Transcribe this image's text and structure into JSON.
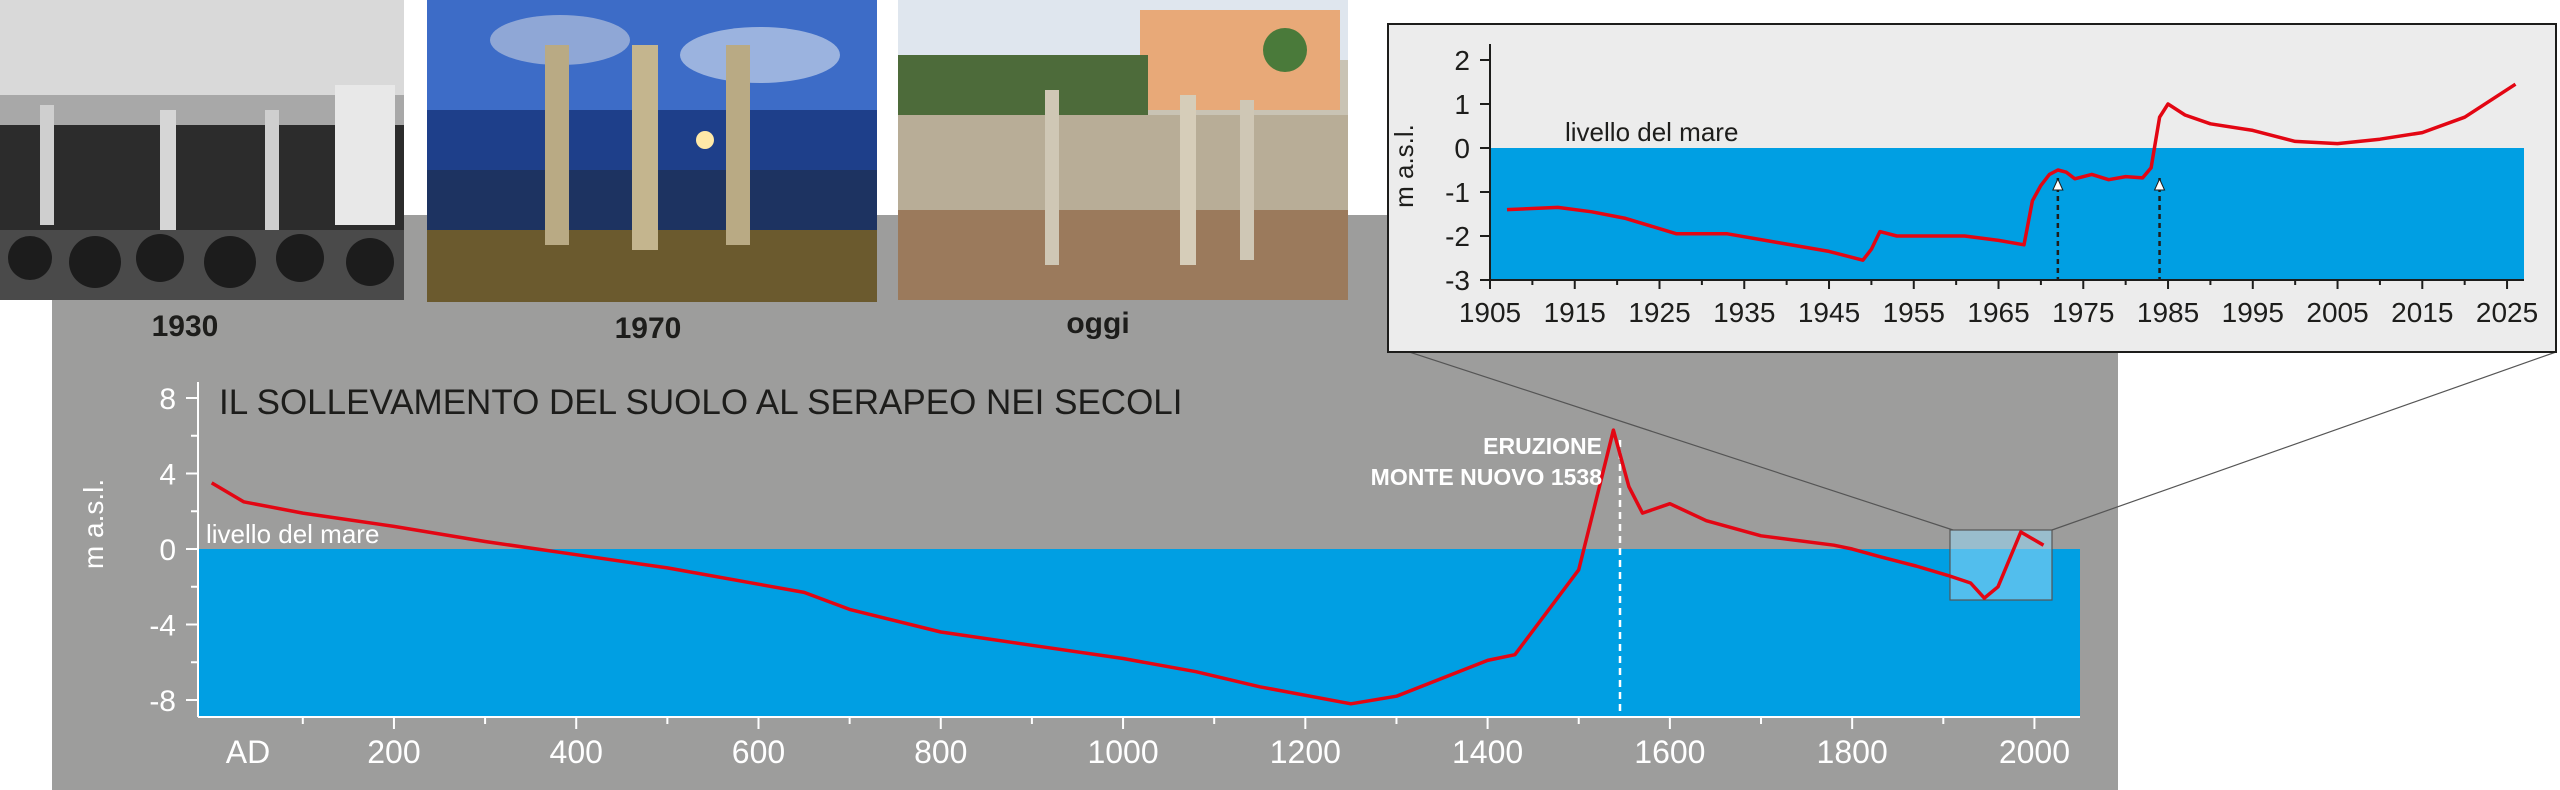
{
  "photos": [
    {
      "caption": "1930",
      "icon": "photo-1930-flooded-ruins"
    },
    {
      "caption": "1970",
      "icon": "photo-1970-night-columns"
    },
    {
      "caption": "oggi",
      "icon": "photo-today-ruins"
    }
  ],
  "colors": {
    "panel_gray": "#9d9d9c",
    "sea_blue": "#009fe3",
    "line_red": "#e30613",
    "inset_bg": "#ececec",
    "highlight_blue": "#66c2ee"
  },
  "main_chart": {
    "title": "IL SOLLEVAMENTO DEL SUOLO AL SERAPEO NEI SECOLI",
    "sea_level_label": "livello del mare",
    "eruption_label_line1": "ERUZIONE",
    "eruption_label_line2": "MONTE NUOVO 1538",
    "ad_label": "AD"
  },
  "inset_chart": {
    "sea_level_label": "livello del mare"
  },
  "chart_data": [
    {
      "type": "line",
      "title": "IL SOLLEVAMENTO DEL SUOLO AL SERAPEO NEI SECOLI",
      "xlabel": "",
      "ylabel": "m a.s.l.",
      "xlim": [
        -15,
        2050
      ],
      "ylim": [
        -9.5,
        9
      ],
      "x_ticks": [
        200,
        400,
        600,
        800,
        1000,
        1200,
        1400,
        1600,
        1800,
        2000
      ],
      "y_ticks": [
        8,
        4,
        0,
        -4,
        -8
      ],
      "y_tick_labels": [
        "8",
        "4",
        "0",
        "-4",
        "-8"
      ],
      "grid": false,
      "annotations": [
        {
          "x": 1538,
          "text": "ERUZIONE MONTE NUOVO 1538"
        }
      ],
      "series": [
        {
          "x": [
            0,
            35,
            100,
            200,
            300,
            400,
            500,
            650,
            700,
            800,
            900,
            1000,
            1080,
            1150,
            1250,
            1300,
            1400,
            1430,
            1500,
            1515,
            1538,
            1555,
            1570,
            1600,
            1640,
            1700,
            1780,
            1800,
            1830,
            1870,
            1905,
            1930,
            1945,
            1960,
            1985,
            2010
          ],
          "y": [
            3.5,
            2.5,
            1.9,
            1.2,
            0.4,
            -0.3,
            -1.0,
            -2.3,
            -3.2,
            -4.4,
            -5.1,
            -5.8,
            -6.5,
            -7.3,
            -8.2,
            -7.8,
            -5.9,
            -5.6,
            -1.1,
            1.8,
            6.3,
            3.3,
            1.9,
            2.4,
            1.5,
            0.7,
            0.2,
            0.0,
            -0.4,
            -0.9,
            -1.4,
            -1.8,
            -2.6,
            -2.0,
            0.9,
            0.2
          ]
        }
      ]
    },
    {
      "type": "line",
      "ylabel": "m a.s.l.",
      "xlim": [
        1905,
        2027
      ],
      "ylim": [
        -3,
        2.5
      ],
      "x_ticks": [
        1905,
        1915,
        1925,
        1935,
        1945,
        1955,
        1965,
        1975,
        1985,
        1995,
        2005,
        2015,
        2025
      ],
      "y_ticks": [
        2,
        1,
        0,
        -1,
        -2,
        -3
      ],
      "grid": false,
      "markers": [
        1972,
        1984
      ],
      "series": [
        {
          "x": [
            1907,
            1913,
            1917,
            1921,
            1927,
            1933,
            1939,
            1945,
            1949,
            1950,
            1951,
            1953,
            1957,
            1961,
            1965,
            1968,
            1969,
            1970,
            1971,
            1972,
            1973,
            1974,
            1976,
            1978,
            1980,
            1982,
            1983,
            1984,
            1985,
            1987,
            1990,
            1995,
            2000,
            2005,
            2010,
            2015,
            2020,
            2026
          ],
          "y": [
            -1.4,
            -1.35,
            -1.45,
            -1.6,
            -1.95,
            -1.95,
            -2.15,
            -2.35,
            -2.55,
            -2.3,
            -1.9,
            -2.0,
            -2.0,
            -2.0,
            -2.1,
            -2.2,
            -1.2,
            -0.85,
            -0.6,
            -0.5,
            -0.55,
            -0.7,
            -0.6,
            -0.72,
            -0.65,
            -0.68,
            -0.45,
            0.7,
            1.0,
            0.75,
            0.55,
            0.4,
            0.15,
            0.1,
            0.2,
            0.35,
            0.7,
            1.45
          ]
        }
      ]
    }
  ]
}
